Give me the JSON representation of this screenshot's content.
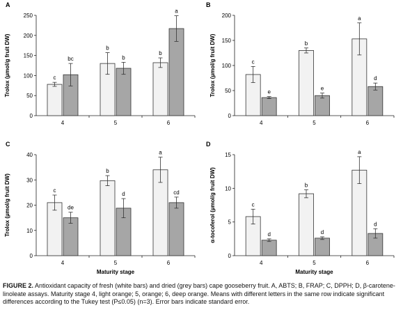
{
  "caption": {
    "label": "FIGURE 2.",
    "text": "Antioxidant capacity of fresh (white bars) and dried (grey bars) cape gooseberry fruit. A, ABTS; B, FRAP; C, DPPH; D, β-carotene-linoleate assays. Maturity stage 4, light orange; 5, orange; 6, deep orange. Means with different letters in the same row indicate significant differences according to the Tukey test (P≤0.05) (n=3). Error bars indicate standard error."
  },
  "colors": {
    "fresh": "#f2f2f2",
    "dried": "#a6a6a6",
    "stroke": "#333333"
  },
  "chart_data": [
    {
      "panel": "A",
      "type": "bar",
      "categories": [
        "4",
        "5",
        "6"
      ],
      "ylabel": "Trolox (µmol/g fruit DW)",
      "xlabel": "",
      "ylim": [
        0,
        250
      ],
      "yticks": [
        0,
        50,
        100,
        150,
        200,
        250
      ],
      "series": [
        {
          "values": [
            78,
            130,
            132
          ],
          "errors": [
            5,
            27,
            12
          ],
          "letters": [
            "c",
            "b",
            "b"
          ]
        },
        {
          "values": [
            102,
            118,
            217
          ],
          "errors": [
            28,
            15,
            32
          ],
          "letters": [
            "bc",
            "b",
            "a"
          ]
        }
      ]
    },
    {
      "panel": "B",
      "type": "bar",
      "categories": [
        "4",
        "5",
        "6"
      ],
      "ylabel": "Trolox (µmol/g fruit DW)",
      "xlabel": "",
      "ylim": [
        0,
        200
      ],
      "yticks": [
        0,
        50,
        100,
        150,
        200
      ],
      "series": [
        {
          "values": [
            82,
            130,
            153
          ],
          "errors": [
            16,
            5,
            32
          ],
          "letters": [
            "c",
            "b",
            "a"
          ]
        },
        {
          "values": [
            36,
            40,
            58
          ],
          "errors": [
            2,
            5,
            7
          ],
          "letters": [
            "e",
            "e",
            "d"
          ]
        }
      ]
    },
    {
      "panel": "C",
      "type": "bar",
      "categories": [
        "4",
        "5",
        "6"
      ],
      "ylabel": "Trolox (µmol/g fruit DW)",
      "xlabel": "Maturity stage",
      "ylim": [
        0,
        40
      ],
      "yticks": [
        0,
        10,
        20,
        30,
        40
      ],
      "series": [
        {
          "values": [
            21,
            29.7,
            34
          ],
          "errors": [
            3,
            2,
            5
          ],
          "letters": [
            "c",
            "b",
            "a"
          ]
        },
        {
          "values": [
            15,
            18.8,
            21
          ],
          "errors": [
            2.2,
            3.8,
            2.2
          ],
          "letters": [
            "de",
            "d",
            "cd"
          ]
        }
      ]
    },
    {
      "panel": "D",
      "type": "bar",
      "categories": [
        "4",
        "5",
        "6"
      ],
      "ylabel": "α-tocoferol (µmol/g fruit DW)",
      "xlabel": "Maturity stage",
      "ylim": [
        0,
        15
      ],
      "yticks": [
        0,
        5,
        10,
        15
      ],
      "series": [
        {
          "values": [
            5.8,
            9.2,
            12.7
          ],
          "errors": [
            1.1,
            0.6,
            2.0
          ],
          "letters": [
            "c",
            "b",
            "a"
          ]
        },
        {
          "values": [
            2.3,
            2.6,
            3.3
          ],
          "errors": [
            0.2,
            0.2,
            0.7
          ],
          "letters": [
            "d",
            "d",
            "d"
          ]
        }
      ]
    }
  ]
}
